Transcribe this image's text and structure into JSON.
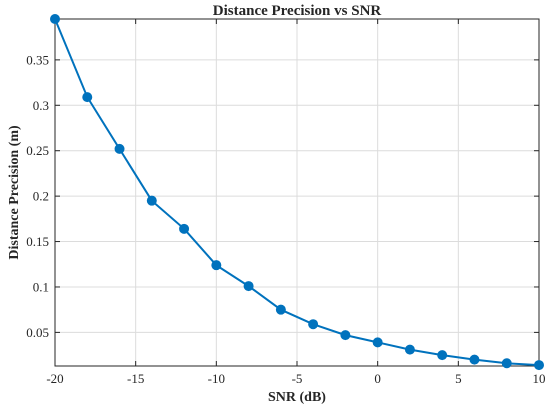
{
  "colors": {
    "series": "#0072BD",
    "axis": "#262626",
    "grid": "#dcdcdc",
    "background": "#ffffff"
  },
  "chart_data": {
    "type": "line",
    "title": "Distance Precision vs SNR",
    "xlabel": "SNR (dB)",
    "ylabel": "Distance Precision (m)",
    "xlim": [
      -20,
      10
    ],
    "ylim": [
      0.013,
      0.395
    ],
    "grid": true,
    "legend": "none",
    "x_ticks": [
      -20,
      -15,
      -10,
      -5,
      0,
      5,
      10
    ],
    "x_tick_labels": [
      "-20",
      "-15",
      "-10",
      "-5",
      "0",
      "5",
      "10"
    ],
    "y_ticks": [
      0.05,
      0.1,
      0.15,
      0.2,
      0.25,
      0.3,
      0.35
    ],
    "y_tick_labels": [
      "0.05",
      "0.1",
      "0.15",
      "0.2",
      "0.25",
      "0.3",
      "0.35"
    ],
    "series": [
      {
        "marker": "circle",
        "x": [
          -20,
          -18,
          -16,
          -14,
          -12,
          -10,
          -8,
          -6,
          -4,
          -2,
          0,
          2,
          4,
          6,
          8,
          10
        ],
        "y": [
          0.395,
          0.309,
          0.252,
          0.195,
          0.164,
          0.124,
          0.101,
          0.075,
          0.059,
          0.047,
          0.039,
          0.031,
          0.025,
          0.02,
          0.016,
          0.014
        ]
      }
    ]
  }
}
